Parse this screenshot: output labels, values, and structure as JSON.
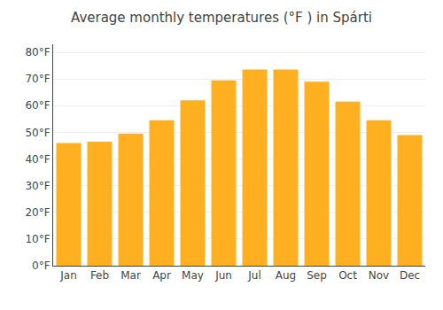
{
  "chart_data": {
    "type": "bar",
    "title": "Average monthly temperatures (°F ) in Spárti",
    "categories": [
      "Jan",
      "Feb",
      "Mar",
      "Apr",
      "May",
      "Jun",
      "Jul",
      "Aug",
      "Sep",
      "Oct",
      "Nov",
      "Dec"
    ],
    "values": [
      46,
      46.5,
      49.5,
      54.5,
      62,
      69.5,
      73.5,
      73.5,
      69,
      61.5,
      54.5,
      49
    ],
    "color": "#FFB020",
    "ylim": [
      0,
      83
    ],
    "yticks": [
      {
        "value": 0,
        "label": "0°F"
      },
      {
        "value": 10,
        "label": "10°F"
      },
      {
        "value": 20,
        "label": "20°F"
      },
      {
        "value": 30,
        "label": "30°F"
      },
      {
        "value": 40,
        "label": "40°F"
      },
      {
        "value": 50,
        "label": "50°F"
      },
      {
        "value": 60,
        "label": "60°F"
      },
      {
        "value": 70,
        "label": "70°F"
      },
      {
        "value": 80,
        "label": "80°F"
      }
    ],
    "grid": true
  }
}
